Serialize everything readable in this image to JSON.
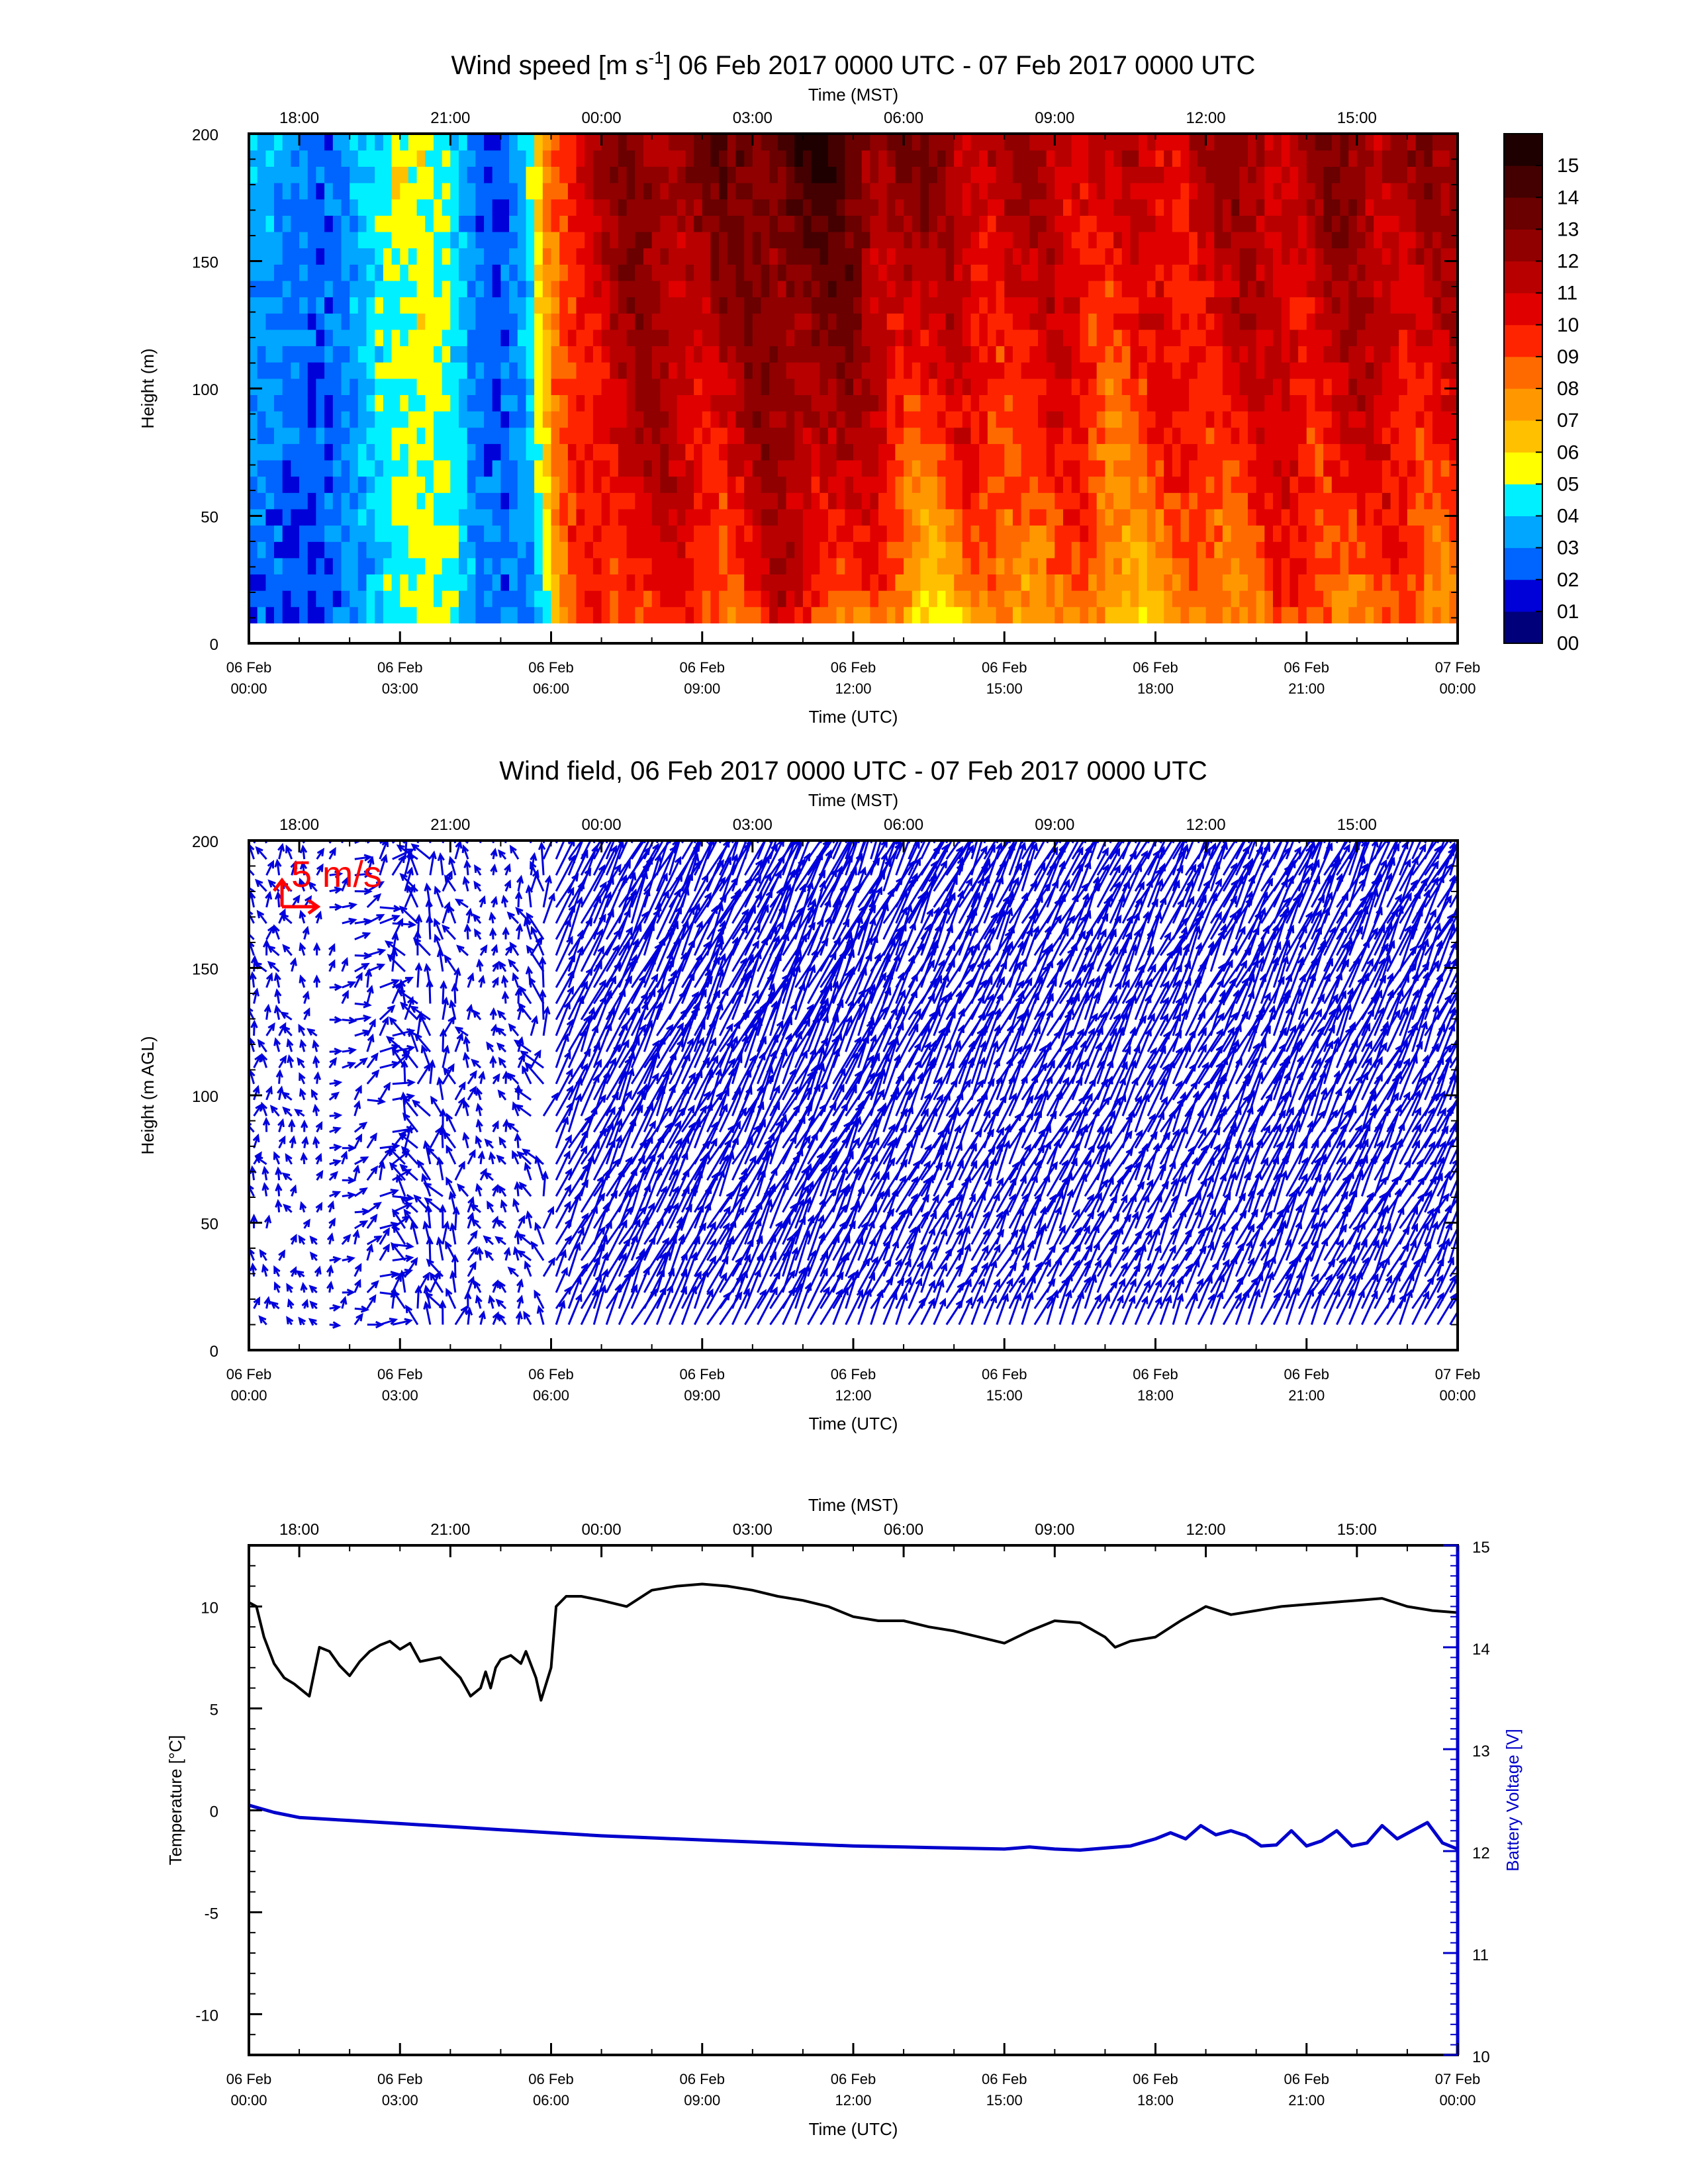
{
  "figure": {
    "x_axis_utc": {
      "title": "Time (UTC)",
      "ticks": [
        [
          "06 Feb",
          "00:00"
        ],
        [
          "06 Feb",
          "03:00"
        ],
        [
          "06 Feb",
          "06:00"
        ],
        [
          "06 Feb",
          "09:00"
        ],
        [
          "06 Feb",
          "12:00"
        ],
        [
          "06 Feb",
          "15:00"
        ],
        [
          "06 Feb",
          "18:00"
        ],
        [
          "06 Feb",
          "21:00"
        ],
        [
          "07 Feb",
          "00:00"
        ]
      ]
    },
    "x_axis_mst": {
      "title": "Time (MST)",
      "ticks": [
        "18:00",
        "21:00",
        "00:00",
        "03:00",
        "06:00",
        "09:00",
        "12:00",
        "15:00"
      ]
    }
  },
  "chart_data": [
    {
      "type": "heatmap",
      "title": "Wind speed [m s⁻¹] 06 Feb 2017 0000 UTC - 07 Feb 2017 0000 UTC",
      "xlabel": "Time (UTC)",
      "x2label": "Time (MST)",
      "ylabel": "Height (m)",
      "x_units": "hours since 06 Feb 2017 00:00 UTC",
      "xlim": [
        0,
        24
      ],
      "ylim": [
        0,
        200
      ],
      "yticks": [
        "0",
        "50",
        "100",
        "150",
        "200"
      ],
      "colorbar": {
        "labels": [
          "00",
          "01",
          "02",
          "03",
          "04",
          "05",
          "06",
          "07",
          "08",
          "09",
          "10",
          "11",
          "12",
          "13",
          "14",
          "15"
        ],
        "colors": [
          "#00007a",
          "#0000d8",
          "#0064ff",
          "#00a6ff",
          "#00f0ff",
          "#ffff00",
          "#ffc000",
          "#ff9800",
          "#ff6a00",
          "#ff2400",
          "#e00000",
          "#b80000",
          "#900000",
          "#6a0000",
          "#440000",
          "#1e0000"
        ]
      },
      "time_hours": [
        0,
        0.5,
        1,
        1.5,
        2,
        2.5,
        3,
        3.5,
        4,
        4.5,
        5,
        5.5,
        6,
        6.5,
        7,
        7.5,
        8,
        8.5,
        9,
        9.5,
        10,
        10.5,
        11,
        11.5,
        12,
        12.5,
        13,
        13.5,
        14,
        14.5,
        15,
        15.5,
        16,
        16.5,
        17,
        17.5,
        18,
        18.5,
        19,
        19.5,
        20,
        20.5,
        21,
        21.5,
        22,
        22.5,
        23,
        23.5,
        24
      ],
      "profile_speed_low": [
        2.5,
        2,
        1.5,
        2,
        2.5,
        3.5,
        4.5,
        5,
        5.5,
        3,
        3,
        2.5,
        4,
        8,
        9,
        9.5,
        9,
        8.5,
        8,
        8,
        8.5,
        9.5,
        9,
        8,
        7.5,
        7,
        6,
        5,
        5.5,
        6,
        6.5,
        7,
        7.5,
        7,
        6.5,
        6,
        6,
        6.5,
        7,
        7.5,
        7.5,
        8,
        8,
        8,
        7.5,
        7,
        7.5,
        7.5,
        7.5
      ],
      "profile_speed_high": [
        3.5,
        3.5,
        3,
        2.5,
        3.5,
        4.5,
        5.5,
        5.5,
        4.5,
        2.5,
        2,
        4,
        9,
        11,
        12,
        12.5,
        13,
        13,
        13,
        13,
        13.5,
        14,
        14.5,
        14.5,
        14,
        13,
        13,
        12.5,
        12.5,
        12,
        12,
        11.5,
        11.5,
        11.5,
        11,
        11,
        11,
        11.5,
        12,
        12,
        12,
        12,
        12,
        12.5,
        12.5,
        12.5,
        12.5,
        12,
        12
      ],
      "data_bottom_m": 8
    },
    {
      "type": "vector_field",
      "title": "Wind field, 06 Feb 2017 0000 UTC - 07 Feb 2017 0000 UTC",
      "xlabel": "Time (UTC)",
      "x2label": "Time (MST)",
      "ylabel": "Height (m AGL)",
      "x_units": "hours since 06 Feb 2017 00:00 UTC",
      "xlim": [
        0,
        24
      ],
      "ylim": [
        0,
        200
      ],
      "yticks": [
        "0",
        "50",
        "100",
        "150",
        "200"
      ],
      "reference_vector": {
        "label": "5 m/s",
        "speed": 5,
        "color": "#ff0000"
      },
      "vector_color": "#0000dd",
      "direction_note": "Early hours (0-6 UTC): light, variable winds pointing mostly up-right/up-left; after 06 UTC: strong winds pointing up-right (southwesterly)"
    },
    {
      "type": "line",
      "xlabel": "Time (UTC)",
      "x2label": "Time (MST)",
      "ylabel": "Temperature [°C]",
      "y2label": "Battery Voltage [V]",
      "x_units": "hours since 06 Feb 2017 00:00 UTC",
      "xlim": [
        0,
        24
      ],
      "ylim": [
        -12,
        13
      ],
      "y2lim": [
        10,
        15
      ],
      "yticks": [
        "-10",
        "-5",
        "0",
        "5",
        "10"
      ],
      "y2ticks": [
        "10",
        "11",
        "12",
        "13",
        "14",
        "15"
      ],
      "series": [
        {
          "color": "#000000",
          "axis": "left",
          "x": [
            0,
            0.15,
            0.3,
            0.5,
            0.7,
            0.9,
            1.2,
            1.4,
            1.6,
            1.8,
            2.0,
            2.2,
            2.4,
            2.6,
            2.8,
            3.0,
            3.2,
            3.4,
            3.6,
            3.8,
            4.0,
            4.2,
            4.4,
            4.6,
            4.7,
            4.8,
            4.9,
            5.0,
            5.2,
            5.4,
            5.5,
            5.7,
            5.8,
            6.0,
            6.1,
            6.3,
            6.6,
            7.0,
            7.5,
            8.0,
            8.5,
            9.0,
            9.5,
            10.0,
            10.5,
            11.0,
            11.5,
            12.0,
            12.5,
            13.0,
            13.5,
            14.0,
            14.5,
            15.0,
            15.5,
            16.0,
            16.5,
            17.0,
            17.2,
            17.5,
            18.0,
            18.5,
            19.0,
            19.5,
            20.0,
            20.5,
            21.0,
            21.5,
            22.0,
            22.5,
            23.0,
            23.5,
            24.0
          ],
          "y": [
            10.2,
            10.0,
            8.5,
            7.2,
            6.5,
            6.2,
            5.6,
            8.0,
            7.8,
            7.1,
            6.6,
            7.3,
            7.8,
            8.1,
            8.3,
            7.9,
            8.2,
            7.3,
            7.4,
            7.5,
            7.0,
            6.5,
            5.6,
            6.0,
            6.8,
            6.0,
            7.0,
            7.4,
            7.6,
            7.2,
            7.8,
            6.5,
            5.4,
            7.0,
            10.0,
            10.5,
            10.5,
            10.3,
            10.0,
            10.8,
            11.0,
            11.1,
            11.0,
            10.8,
            10.5,
            10.3,
            10.0,
            9.5,
            9.3,
            9.3,
            9.0,
            8.8,
            8.5,
            8.2,
            8.8,
            9.3,
            9.2,
            8.5,
            8.0,
            8.3,
            8.5,
            9.3,
            10.0,
            9.6,
            9.8,
            10.0,
            10.1,
            10.2,
            10.3,
            10.4,
            10.0,
            9.8,
            9.7
          ]
        },
        {
          "color": "#0000cc",
          "axis": "right",
          "x": [
            0,
            0.5,
            1,
            2,
            3,
            4,
            5,
            6,
            7,
            8,
            9,
            10,
            11,
            12,
            13,
            14,
            15,
            15.5,
            16,
            16.5,
            17,
            17.5,
            18,
            18.3,
            18.6,
            18.9,
            19.2,
            19.5,
            19.8,
            20.1,
            20.4,
            20.7,
            21.0,
            21.3,
            21.6,
            21.9,
            22.2,
            22.5,
            22.8,
            23.1,
            23.4,
            23.7,
            24.0
          ],
          "y": [
            12.45,
            12.38,
            12.33,
            12.3,
            12.27,
            12.24,
            12.21,
            12.18,
            12.15,
            12.13,
            12.11,
            12.09,
            12.07,
            12.05,
            12.04,
            12.03,
            12.02,
            12.04,
            12.02,
            12.01,
            12.03,
            12.05,
            12.12,
            12.18,
            12.12,
            12.25,
            12.16,
            12.2,
            12.15,
            12.05,
            12.06,
            12.2,
            12.05,
            12.1,
            12.2,
            12.05,
            12.08,
            12.25,
            12.12,
            12.2,
            12.28,
            12.08,
            12.02
          ]
        }
      ]
    }
  ]
}
